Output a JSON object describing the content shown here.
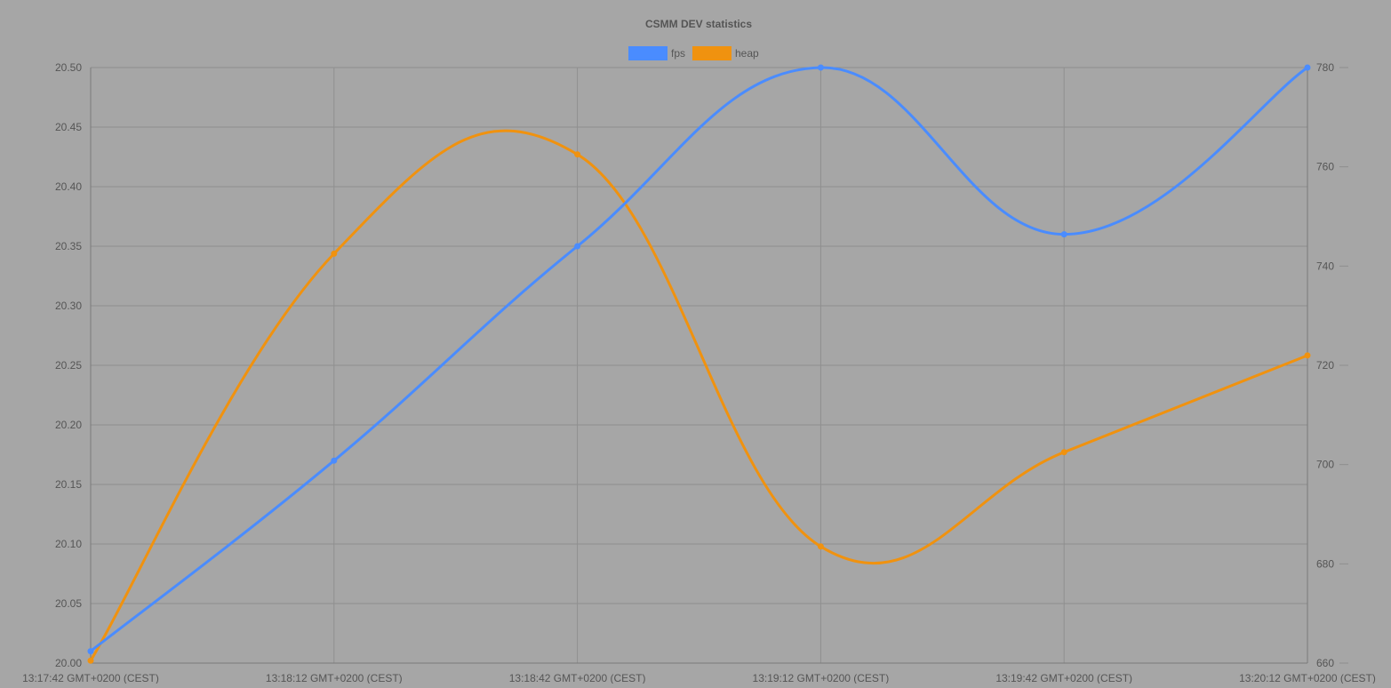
{
  "chart_data": {
    "type": "line",
    "title": "CSMM DEV statistics",
    "xlabel": "",
    "ylabel": "",
    "x": [
      "13:17:42 GMT+0200 (CEST)",
      "13:18:12 GMT+0200 (CEST)",
      "13:18:42 GMT+0200 (CEST)",
      "13:19:12 GMT+0200 (CEST)",
      "13:19:42 GMT+0200 (CEST)",
      "13:20:12 GMT+0200 (CEST)"
    ],
    "series": [
      {
        "name": "fps",
        "axis": "left",
        "color": "#4a8cff",
        "values": [
          20.01,
          20.17,
          20.35,
          20.5,
          20.36,
          20.5
        ]
      },
      {
        "name": "heap",
        "axis": "right",
        "color": "#f0920f",
        "values": [
          660.5,
          742.5,
          762.5,
          683.5,
          702.5,
          722
        ]
      }
    ],
    "y_left": {
      "range": [
        20,
        20.5
      ],
      "ticks": [
        "20.00",
        "20.05",
        "20.10",
        "20.15",
        "20.20",
        "20.25",
        "20.30",
        "20.35",
        "20.40",
        "20.45",
        "20.50"
      ]
    },
    "y_right": {
      "range": [
        660,
        780
      ],
      "ticks": [
        "660",
        "680",
        "700",
        "720",
        "740",
        "760",
        "780"
      ]
    },
    "grid": true,
    "legend_position": "top-center",
    "background_color": "#a6a6a6",
    "grid_color": "#8f8f8f",
    "text_color": "#555555"
  }
}
